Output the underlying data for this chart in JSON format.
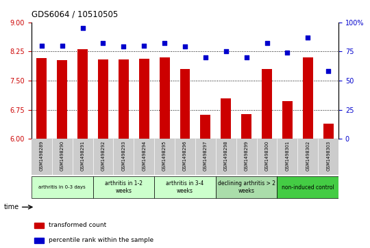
{
  "title": "GDS6064 / 10510505",
  "samples": [
    "GSM1498289",
    "GSM1498290",
    "GSM1498291",
    "GSM1498292",
    "GSM1498293",
    "GSM1498294",
    "GSM1498295",
    "GSM1498296",
    "GSM1498297",
    "GSM1498298",
    "GSM1498299",
    "GSM1498300",
    "GSM1498301",
    "GSM1498302",
    "GSM1498303"
  ],
  "bar_values": [
    8.08,
    8.03,
    8.3,
    8.05,
    8.04,
    8.07,
    8.09,
    7.8,
    6.62,
    7.05,
    6.63,
    7.8,
    6.97,
    8.09,
    6.4
  ],
  "scatter_values": [
    80,
    80,
    95,
    82,
    79,
    80,
    82,
    79,
    70,
    75,
    70,
    82,
    74,
    87,
    58
  ],
  "bar_color": "#cc0000",
  "scatter_color": "#0000cc",
  "ylim_left": [
    6,
    9
  ],
  "ylim_right": [
    0,
    100
  ],
  "yticks_left": [
    6,
    6.75,
    7.5,
    8.25,
    9
  ],
  "yticks_right": [
    0,
    25,
    50,
    75,
    100
  ],
  "groups": [
    {
      "label": "arthritis in 0-3 days",
      "start": 0,
      "end": 3,
      "color": "#ccffcc",
      "font_small": true
    },
    {
      "label": "arthritis in 1-2\nweeks",
      "start": 3,
      "end": 6,
      "color": "#ccffcc",
      "font_small": false
    },
    {
      "label": "arthritis in 3-4\nweeks",
      "start": 6,
      "end": 9,
      "color": "#ccffcc",
      "font_small": false
    },
    {
      "label": "declining arthritis > 2\nweeks",
      "start": 9,
      "end": 12,
      "color": "#aaddaa",
      "font_small": false
    },
    {
      "label": "non-induced control",
      "start": 12,
      "end": 15,
      "color": "#44cc44",
      "font_small": false
    }
  ],
  "time_label": "time",
  "legend_bar": "transformed count",
  "legend_scatter": "percentile rank within the sample",
  "tick_label_color_left": "#cc0000",
  "tick_label_color_right": "#0000cc",
  "xlabel_bg": "#cccccc"
}
